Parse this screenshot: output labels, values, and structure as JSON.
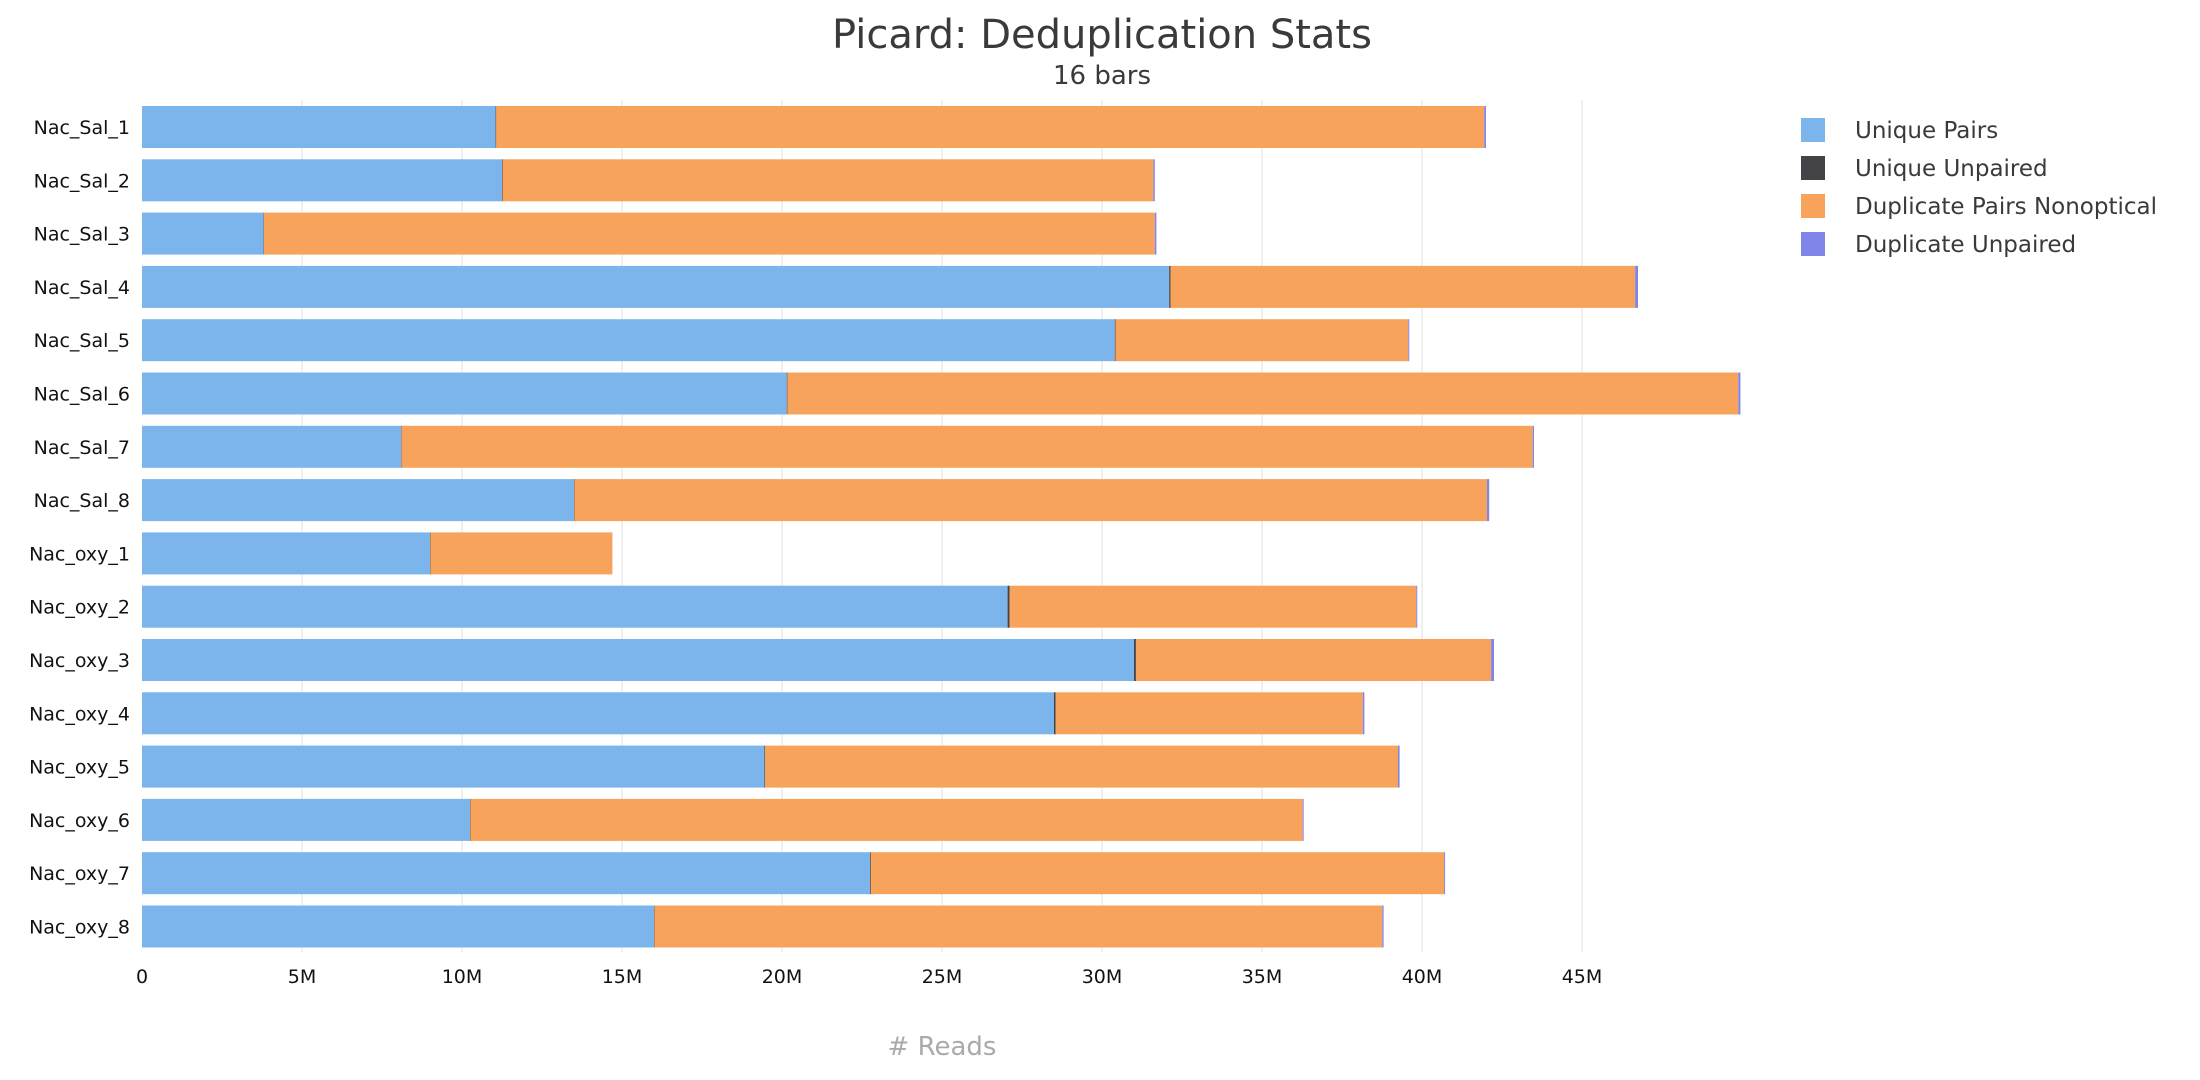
{
  "chart_data": {
    "type": "bar",
    "orientation": "horizontal",
    "stacked": true,
    "title": "Picard: Deduplication Stats",
    "subtitle": "16 bars",
    "xlabel": "# Reads",
    "ylabel": "",
    "xlim": [
      0,
      50000000
    ],
    "xticks": [
      0,
      5000000,
      10000000,
      15000000,
      20000000,
      25000000,
      30000000,
      35000000,
      40000000,
      45000000
    ],
    "xtick_labels": [
      "0",
      "5M",
      "10M",
      "15M",
      "20M",
      "25M",
      "30M",
      "35M",
      "40M",
      "45M"
    ],
    "grid": "vertical",
    "legend_position": "top-right",
    "categories": [
      "Nac_Sal_1",
      "Nac_Sal_2",
      "Nac_Sal_3",
      "Nac_Sal_4",
      "Nac_Sal_5",
      "Nac_Sal_6",
      "Nac_Sal_7",
      "Nac_Sal_8",
      "Nac_oxy_1",
      "Nac_oxy_2",
      "Nac_oxy_3",
      "Nac_oxy_4",
      "Nac_oxy_5",
      "Nac_oxy_6",
      "Nac_oxy_7",
      "Nac_oxy_8"
    ],
    "series": [
      {
        "name": "Unique Pairs",
        "color": "#7cb5ec",
        "values": [
          11050000,
          11250000,
          3800000,
          32100000,
          30400000,
          20150000,
          8100000,
          13500000,
          9000000,
          27050000,
          31000000,
          28500000,
          19450000,
          10250000,
          22750000,
          16000000
        ]
      },
      {
        "name": "Unique Unpaired",
        "color": "#434348",
        "values": [
          15000,
          15000,
          10000,
          40000,
          20000,
          15000,
          10000,
          10000,
          10000,
          60000,
          60000,
          50000,
          20000,
          10000,
          20000,
          10000
        ]
      },
      {
        "name": "Duplicate Pairs Nonoptical",
        "color": "#f7a35c",
        "values": [
          30880000,
          20340000,
          27840000,
          14520000,
          9150000,
          29720000,
          35350000,
          28520000,
          5690000,
          12710000,
          11100000,
          9600000,
          19780000,
          26010000,
          17920000,
          22750000
        ]
      },
      {
        "name": "Duplicate Unpaired",
        "color": "#8085e9",
        "values": [
          55000,
          45000,
          50000,
          90000,
          30000,
          65000,
          40000,
          70000,
          0,
          30000,
          90000,
          50000,
          50000,
          30000,
          10000,
          40000
        ]
      }
    ]
  }
}
